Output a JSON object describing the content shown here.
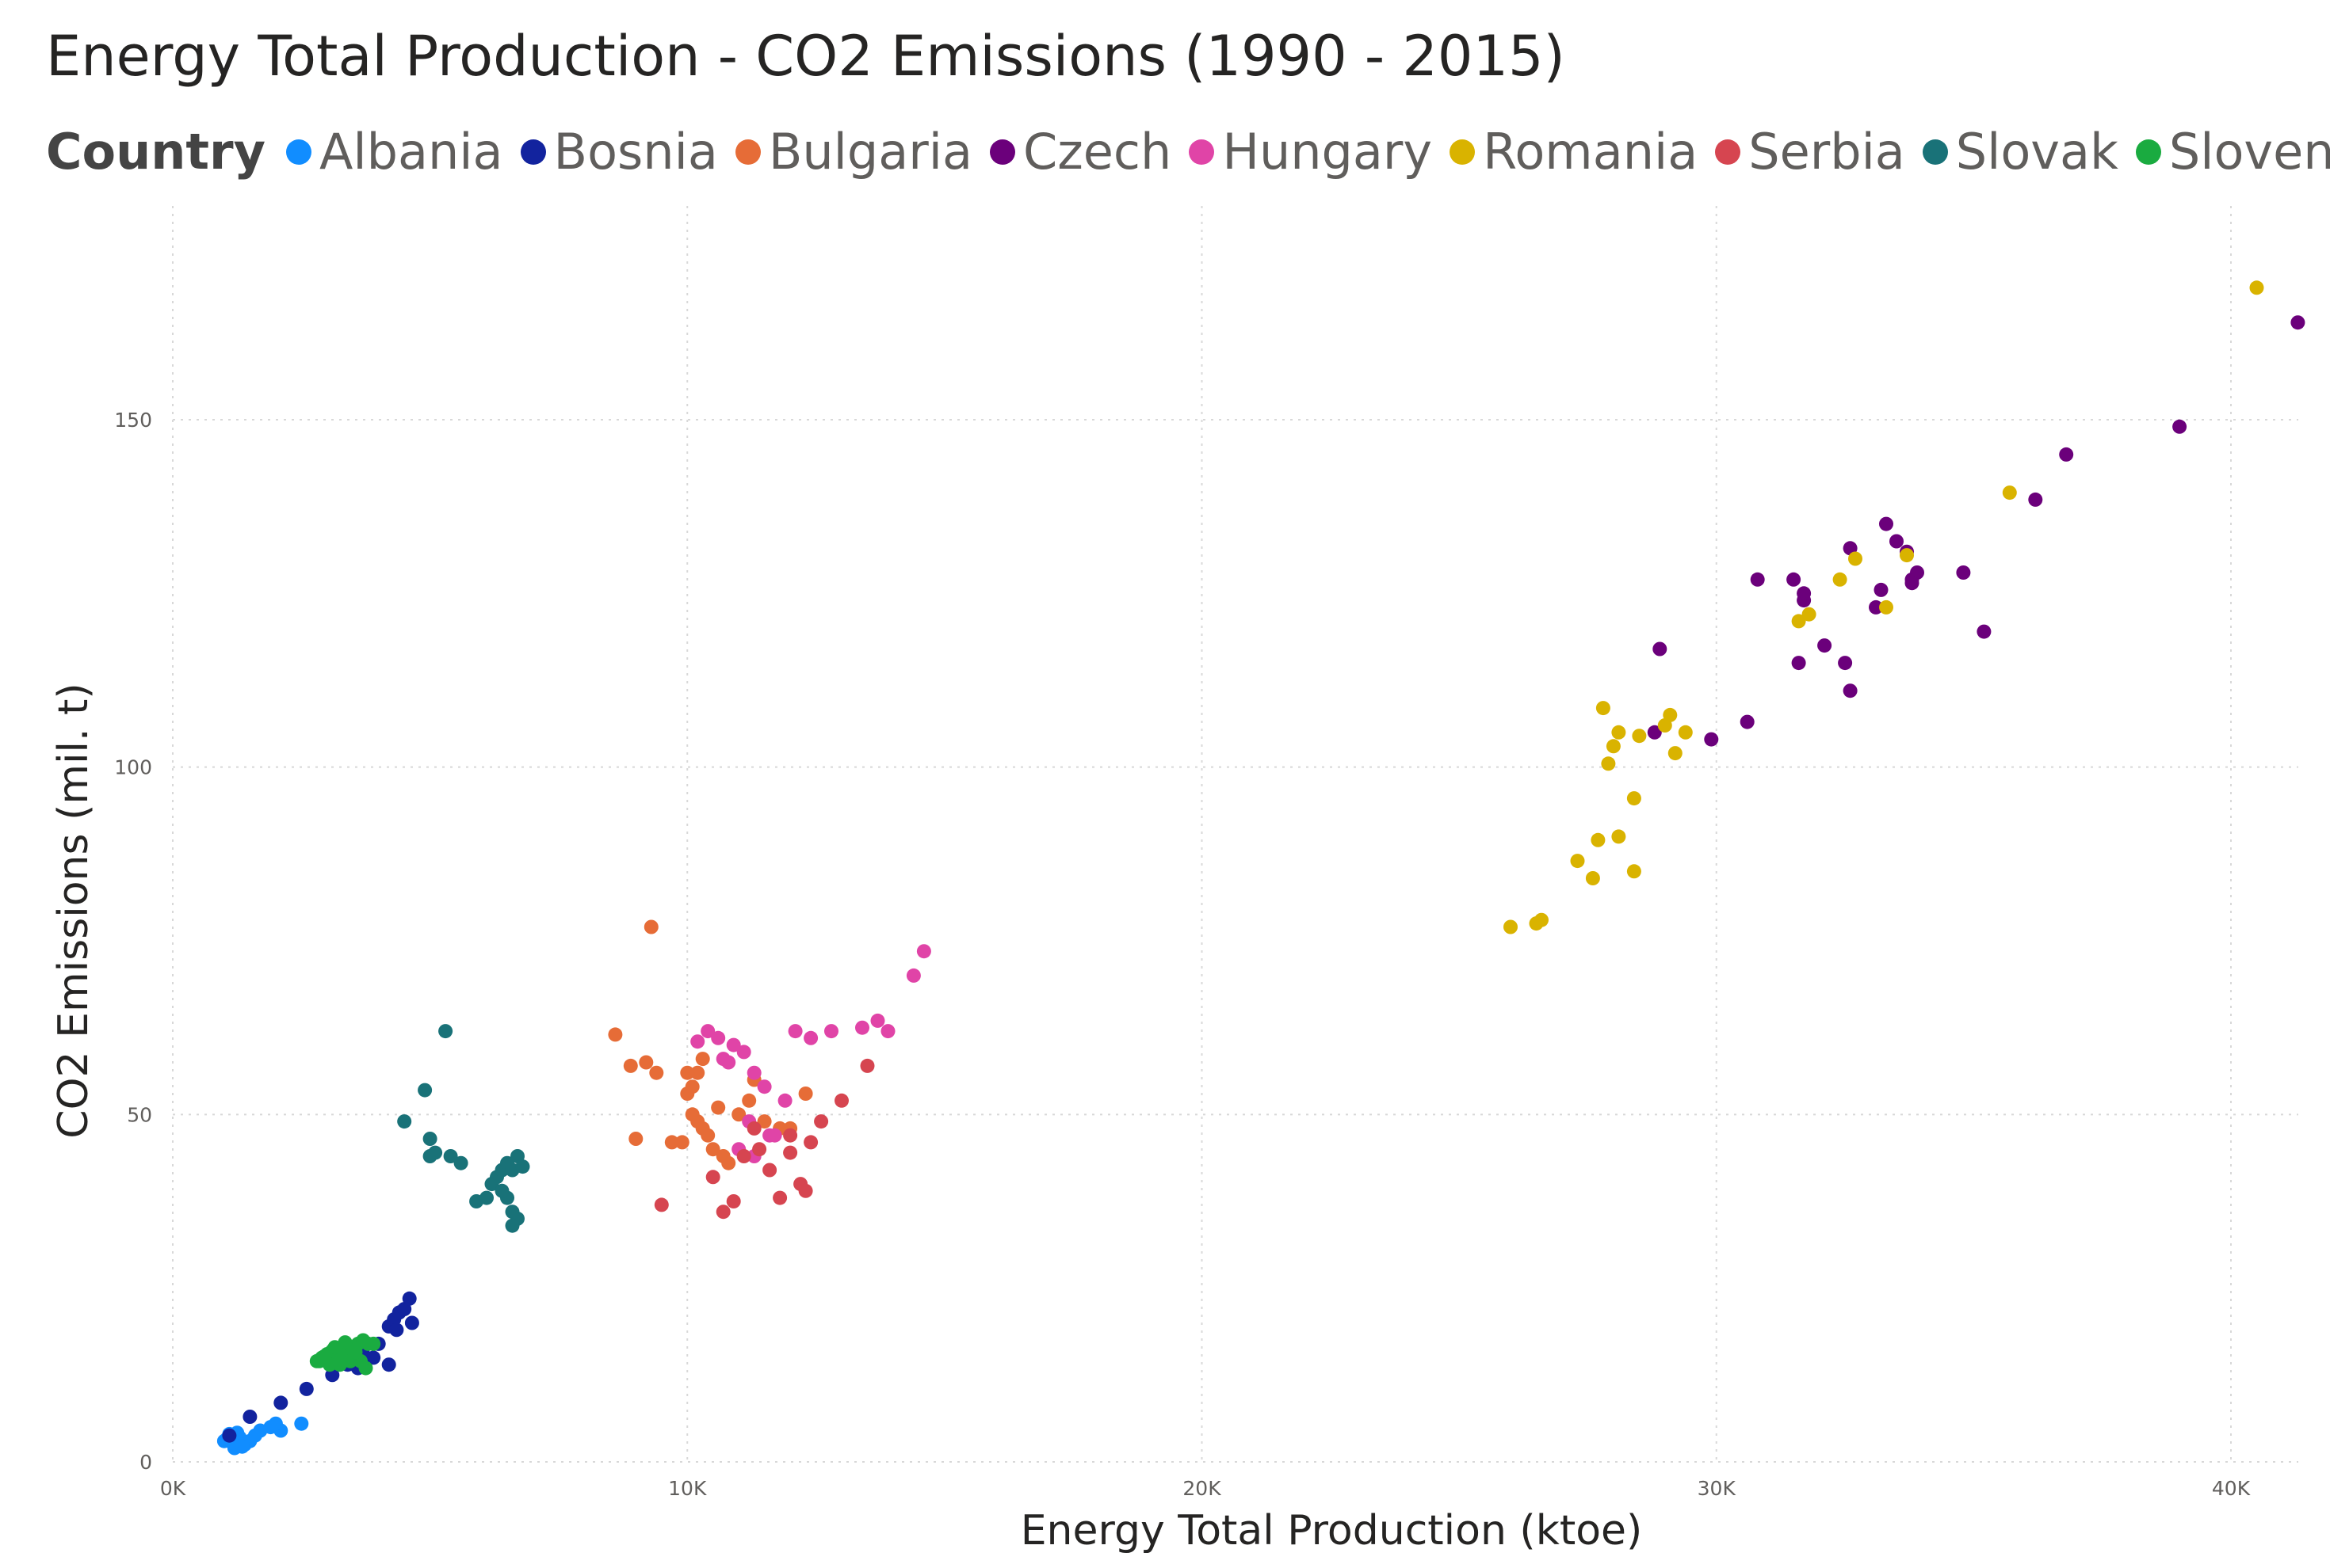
{
  "chart_data": {
    "type": "scatter",
    "title": "Energy Total Production - CO2 Emissions (1990 - 2015)",
    "xlabel": "Energy Total Production (ktoe)",
    "ylabel": "CO2 Emissions (mil. t)",
    "xlim": [
      0,
      41500
    ],
    "ylim": [
      0,
      175
    ],
    "x_ticks": [
      0,
      10000,
      20000,
      30000,
      40000
    ],
    "x_tick_labels": [
      "0K",
      "10K",
      "20K",
      "30K",
      "40K"
    ],
    "y_ticks": [
      0,
      50,
      100,
      150
    ],
    "y_tick_labels": [
      "0",
      "50",
      "100",
      "150"
    ],
    "grid": true,
    "legend_title": "Country",
    "legend_position": "top",
    "series": [
      {
        "name": "Albania",
        "color": "#118DFF",
        "points": [
          [
            1000,
            3
          ],
          [
            1100,
            4
          ],
          [
            1200,
            2
          ],
          [
            1300,
            3.5
          ],
          [
            1400,
            2.5
          ],
          [
            1500,
            3
          ],
          [
            1250,
            4.2
          ],
          [
            1050,
            3.3
          ],
          [
            1350,
            2.2
          ],
          [
            1700,
            4.5
          ],
          [
            1900,
            5
          ],
          [
            2100,
            4.5
          ],
          [
            2000,
            5.5
          ],
          [
            2500,
            5.5
          ],
          [
            1600,
            3.8
          ],
          [
            1150,
            2.8
          ]
        ]
      },
      {
        "name": "Bosnia",
        "color": "#12239E",
        "points": [
          [
            1100,
            3.8
          ],
          [
            1500,
            6.5
          ],
          [
            2100,
            8.5
          ],
          [
            2600,
            10.5
          ],
          [
            3100,
            12.5
          ],
          [
            3400,
            14
          ],
          [
            3700,
            15.5
          ],
          [
            4000,
            17
          ],
          [
            4200,
            19.5
          ],
          [
            4300,
            20.5
          ],
          [
            4400,
            21.5
          ],
          [
            4500,
            22
          ],
          [
            4600,
            23.5
          ],
          [
            4650,
            20
          ],
          [
            4350,
            19
          ],
          [
            4200,
            14
          ],
          [
            3900,
            15
          ],
          [
            3600,
            13.5
          ]
        ]
      },
      {
        "name": "Bulgaria",
        "color": "#E66C37",
        "points": [
          [
            8600,
            61.5
          ],
          [
            8900,
            57
          ],
          [
            9200,
            57.5
          ],
          [
            9400,
            56
          ],
          [
            9300,
            77
          ],
          [
            9000,
            46.5
          ],
          [
            9700,
            46
          ],
          [
            10000,
            53
          ],
          [
            10100,
            50
          ],
          [
            10200,
            49
          ],
          [
            10300,
            48
          ],
          [
            10400,
            47
          ],
          [
            10500,
            45
          ],
          [
            10700,
            44
          ],
          [
            10100,
            54
          ],
          [
            10200,
            56
          ],
          [
            10300,
            58
          ],
          [
            10800,
            43
          ],
          [
            11000,
            50
          ],
          [
            11200,
            52
          ],
          [
            11500,
            49
          ],
          [
            11800,
            48
          ],
          [
            12000,
            48
          ],
          [
            12300,
            53
          ],
          [
            9900,
            46
          ],
          [
            10600,
            51
          ],
          [
            11300,
            55
          ],
          [
            10000,
            56
          ]
        ]
      },
      {
        "name": "Czech",
        "color": "#6B007B",
        "points": [
          [
            28800,
            105
          ],
          [
            28900,
            117
          ],
          [
            29900,
            104
          ],
          [
            30600,
            106.5
          ],
          [
            30800,
            127
          ],
          [
            31500,
            127
          ],
          [
            31700,
            124
          ],
          [
            31700,
            125
          ],
          [
            31600,
            115
          ],
          [
            32100,
            117.5
          ],
          [
            32500,
            115
          ],
          [
            32600,
            111
          ],
          [
            32600,
            131.5
          ],
          [
            33100,
            123
          ],
          [
            33200,
            125.5
          ],
          [
            33300,
            135
          ],
          [
            33500,
            132.5
          ],
          [
            33700,
            131
          ],
          [
            33800,
            127
          ],
          [
            33900,
            128
          ],
          [
            33800,
            126.5
          ],
          [
            34800,
            128
          ],
          [
            35200,
            119.5
          ],
          [
            36200,
            138.5
          ],
          [
            36800,
            145
          ],
          [
            39000,
            149
          ],
          [
            41300,
            164
          ]
        ]
      },
      {
        "name": "Hungary",
        "color": "#E044A7",
        "points": [
          [
            10200,
            60.5
          ],
          [
            10400,
            62
          ],
          [
            10600,
            61
          ],
          [
            10700,
            58
          ],
          [
            10900,
            60
          ],
          [
            11100,
            59
          ],
          [
            11300,
            56
          ],
          [
            11500,
            54
          ],
          [
            11600,
            47
          ],
          [
            11900,
            52
          ],
          [
            12100,
            62
          ],
          [
            12400,
            61
          ],
          [
            12800,
            62
          ],
          [
            13400,
            62.5
          ],
          [
            13700,
            63.5
          ],
          [
            13900,
            62
          ],
          [
            14400,
            70
          ],
          [
            14600,
            73.5
          ],
          [
            11000,
            45
          ],
          [
            11300,
            44
          ],
          [
            11700,
            47
          ],
          [
            10800,
            57.5
          ],
          [
            11200,
            49
          ]
        ]
      },
      {
        "name": "Romania",
        "color": "#D9B300",
        "points": [
          [
            26000,
            77
          ],
          [
            26500,
            77.5
          ],
          [
            26600,
            78
          ],
          [
            27300,
            86.5
          ],
          [
            27600,
            84
          ],
          [
            27700,
            89.5
          ],
          [
            27800,
            108.5
          ],
          [
            27900,
            100.5
          ],
          [
            28000,
            103
          ],
          [
            28100,
            105
          ],
          [
            28100,
            90
          ],
          [
            28500,
            104.5
          ],
          [
            28400,
            85
          ],
          [
            28400,
            95.5
          ],
          [
            29000,
            106
          ],
          [
            29100,
            107.5
          ],
          [
            29200,
            102
          ],
          [
            29400,
            105
          ],
          [
            31600,
            121
          ],
          [
            31800,
            122
          ],
          [
            32400,
            127
          ],
          [
            32700,
            130
          ],
          [
            33300,
            123
          ],
          [
            33700,
            130.5
          ],
          [
            35700,
            139.5
          ],
          [
            40500,
            169
          ]
        ]
      },
      {
        "name": "Serbia",
        "color": "#D64550",
        "points": [
          [
            9500,
            37
          ],
          [
            10700,
            36
          ],
          [
            10900,
            37.5
          ],
          [
            11100,
            44
          ],
          [
            11400,
            45
          ],
          [
            11600,
            42
          ],
          [
            11800,
            38
          ],
          [
            12000,
            47
          ],
          [
            12200,
            40
          ],
          [
            12300,
            39
          ],
          [
            12400,
            46
          ],
          [
            12600,
            49
          ],
          [
            13000,
            52
          ],
          [
            13500,
            57
          ],
          [
            12000,
            44.5
          ],
          [
            11300,
            48
          ],
          [
            10500,
            41
          ]
        ]
      },
      {
        "name": "Slovak",
        "color": "#197278",
        "points": [
          [
            4500,
            49
          ],
          [
            4900,
            53.5
          ],
          [
            5300,
            62
          ],
          [
            5000,
            46.5
          ],
          [
            5100,
            44.5
          ],
          [
            5400,
            44
          ],
          [
            5600,
            43
          ],
          [
            5900,
            37.5
          ],
          [
            6100,
            38
          ],
          [
            6200,
            40
          ],
          [
            6300,
            41
          ],
          [
            6400,
            42
          ],
          [
            6500,
            43
          ],
          [
            6600,
            42
          ],
          [
            6700,
            44
          ],
          [
            6800,
            42.5
          ],
          [
            6500,
            38
          ],
          [
            6600,
            36
          ],
          [
            6700,
            35
          ],
          [
            6600,
            34
          ],
          [
            6400,
            39
          ],
          [
            5000,
            44
          ]
        ]
      },
      {
        "name": "Slovenia",
        "color": "#1AAB40",
        "points": [
          [
            2800,
            14.5
          ],
          [
            2900,
            15
          ],
          [
            3000,
            15.5
          ],
          [
            3100,
            16
          ],
          [
            3200,
            15
          ],
          [
            3300,
            15.5
          ],
          [
            3400,
            16
          ],
          [
            3500,
            16.5
          ],
          [
            3600,
            17
          ],
          [
            3700,
            17.5
          ],
          [
            3800,
            17
          ],
          [
            3900,
            17
          ],
          [
            2850,
            14.5
          ],
          [
            3050,
            14
          ],
          [
            3250,
            14
          ],
          [
            3450,
            14.5
          ],
          [
            3650,
            14.5
          ],
          [
            3750,
            13.5
          ],
          [
            3150,
            16.5
          ],
          [
            3550,
            15.8
          ],
          [
            2950,
            15.2
          ],
          [
            3350,
            17.2
          ]
        ]
      }
    ]
  }
}
